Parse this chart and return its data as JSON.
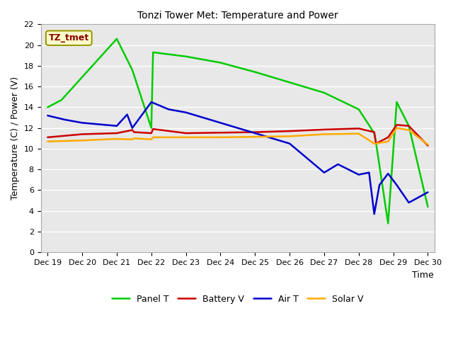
{
  "title": "Tonzi Tower Met: Temperature and Power",
  "xlabel": "Time",
  "ylabel": "Temperature (C) / Power (V)",
  "x_labels": [
    "Dec 19",
    "Dec 20",
    "Dec 21",
    "Dec 22",
    "Dec 23",
    "Dec 24",
    "Dec 25",
    "Dec 26",
    "Dec 27",
    "Dec 28",
    "Dec 29",
    "Dec 30"
  ],
  "x_values": [
    0,
    1,
    2,
    3,
    4,
    5,
    6,
    7,
    8,
    9,
    10,
    11
  ],
  "ylim": [
    0,
    22
  ],
  "yticks": [
    0,
    2,
    4,
    6,
    8,
    10,
    12,
    14,
    16,
    18,
    20,
    22
  ],
  "panel_T": {
    "x": [
      0,
      0.4,
      2.0,
      2.45,
      3.0,
      3.05,
      4.0,
      5.0,
      6.0,
      7.0,
      8.0,
      9.0,
      9.45,
      9.5,
      9.85,
      10.1,
      10.45,
      11.0
    ],
    "y": [
      14.0,
      14.7,
      20.6,
      17.6,
      12.0,
      19.3,
      18.9,
      18.3,
      17.4,
      16.4,
      15.4,
      13.8,
      11.5,
      10.6,
      2.8,
      14.5,
      12.2,
      4.4
    ],
    "color": "#00cc00",
    "label": "Panel T",
    "lw": 1.8
  },
  "battery_V": {
    "x": [
      0,
      1.0,
      2.0,
      2.45,
      2.5,
      3.0,
      3.05,
      4.0,
      5.0,
      6.0,
      7.0,
      8.0,
      9.0,
      9.45,
      9.5,
      9.85,
      10.1,
      10.45,
      11.0
    ],
    "y": [
      11.1,
      11.4,
      11.5,
      11.8,
      11.6,
      11.5,
      11.9,
      11.5,
      11.55,
      11.6,
      11.7,
      11.85,
      11.95,
      11.6,
      10.5,
      11.1,
      12.3,
      12.2,
      10.3
    ],
    "color": "#cc0000",
    "label": "Battery V",
    "lw": 1.8
  },
  "air_T": {
    "x": [
      0,
      0.5,
      1.0,
      2.0,
      2.3,
      2.45,
      3.0,
      3.5,
      4.0,
      5.0,
      6.0,
      7.0,
      8.0,
      8.4,
      9.0,
      9.3,
      9.45,
      9.6,
      9.85,
      10.1,
      10.45,
      11.0
    ],
    "y": [
      13.2,
      12.8,
      12.5,
      12.2,
      13.3,
      12.0,
      14.5,
      13.8,
      13.5,
      12.5,
      11.5,
      10.5,
      7.7,
      8.5,
      7.5,
      7.7,
      3.7,
      6.5,
      7.6,
      6.5,
      4.8,
      5.8
    ],
    "color": "#0000cc",
    "label": "Air T",
    "lw": 1.8
  },
  "solar_V": {
    "x": [
      0,
      1.0,
      2.0,
      2.45,
      2.5,
      3.0,
      3.05,
      4.0,
      5.0,
      6.0,
      7.0,
      8.0,
      9.0,
      9.45,
      9.5,
      9.85,
      10.1,
      10.45,
      11.0
    ],
    "y": [
      10.7,
      10.8,
      10.95,
      10.9,
      11.0,
      10.9,
      11.1,
      11.1,
      11.1,
      11.15,
      11.2,
      11.4,
      11.45,
      10.5,
      10.5,
      10.7,
      12.0,
      11.8,
      10.4
    ],
    "color": "#ffaa00",
    "label": "Solar V",
    "lw": 1.8
  },
  "annotation_text": "TZ_tmet",
  "annotation_color": "#8b0000",
  "annotation_bg": "#ffffcc",
  "annotation_edge": "#999900",
  "fig_bg_color": "#ffffff",
  "plot_bg_color": "#e8e8e8",
  "grid_color": "#ffffff",
  "tick_fontsize": 8,
  "title_fontsize": 10,
  "label_fontsize": 9,
  "legend_fontsize": 9
}
